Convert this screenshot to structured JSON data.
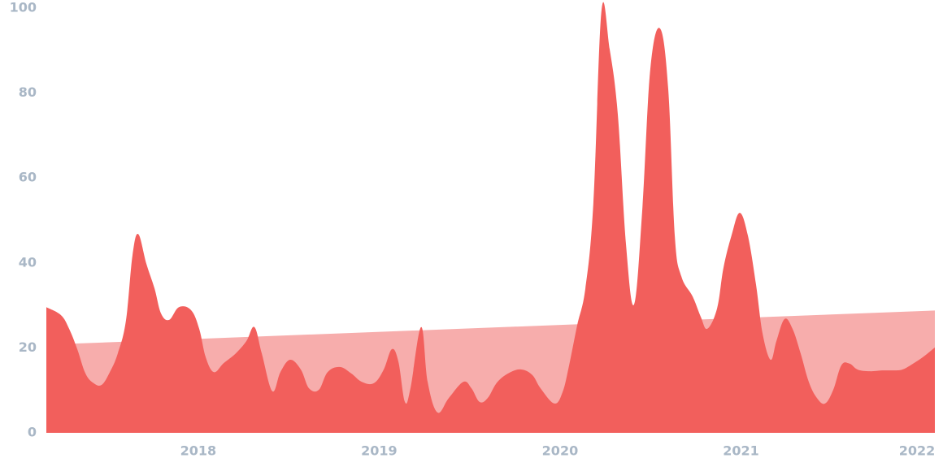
{
  "chart_data": {
    "type": "area",
    "x": [
      2017.16,
      2017.241,
      2017.286,
      2017.331,
      2017.376,
      2017.421,
      2017.466,
      2017.511,
      2017.555,
      2017.6,
      2017.636,
      2017.668,
      2017.713,
      2017.758,
      2017.794,
      2017.839,
      2017.893,
      2017.96,
      2018.005,
      2018.041,
      2018.086,
      2018.14,
      2018.207,
      2018.266,
      2018.31,
      2018.351,
      2018.409,
      2018.454,
      2018.508,
      2018.567,
      2018.612,
      2018.666,
      2018.715,
      2018.782,
      2018.845,
      2018.904,
      2018.971,
      2019.025,
      2019.07,
      2019.106,
      2019.142,
      2019.173,
      2019.232,
      2019.268,
      2019.322,
      2019.385,
      2019.465,
      2019.51,
      2019.555,
      2019.6,
      2019.654,
      2019.726,
      2019.789,
      2019.847,
      2019.892,
      2019.969,
      2020.014,
      2020.05,
      2020.095,
      2020.14,
      2020.184,
      2020.229,
      2020.274,
      2020.319,
      2020.364,
      2020.409,
      2020.454,
      2020.499,
      2020.553,
      2020.598,
      2020.634,
      2020.67,
      2020.733,
      2020.778,
      2020.814,
      2020.868,
      2020.903,
      2020.948,
      2020.993,
      2021.038,
      2021.083,
      2021.119,
      2021.164,
      2021.196,
      2021.241,
      2021.285,
      2021.33,
      2021.375,
      2021.42,
      2021.465,
      2021.51,
      2021.555,
      2021.6,
      2021.645,
      2021.712,
      2021.78,
      2021.847,
      2021.892,
      2021.937,
      2022.005,
      2022.072
    ],
    "series": [
      {
        "color": "#f7adac",
        "x": [
          2017.308,
          2022.072
        ],
        "values": [
          21,
          28.8
        ]
      },
      {
        "color": "#f25f5c",
        "values": [
          29.6,
          27.7,
          24.5,
          19.7,
          14,
          11.7,
          11.3,
          14.3,
          18.7,
          26.4,
          41.7,
          46.8,
          39.8,
          34,
          28.1,
          26.6,
          29.6,
          28.9,
          24.5,
          17.8,
          14.3,
          16.4,
          18.7,
          21.6,
          24.9,
          18.7,
          9.8,
          14.3,
          17.2,
          14.9,
          10.5,
          10.1,
          14.3,
          15.5,
          14,
          12,
          11.7,
          14.9,
          19.7,
          16.8,
          7.3,
          10.5,
          24.9,
          12,
          4.8,
          8.2,
          12,
          10.5,
          7.3,
          8.2,
          12,
          14.3,
          14.9,
          13.6,
          10.5,
          6.9,
          9.6,
          15.9,
          25.4,
          34,
          54,
          99.4,
          90.4,
          75.1,
          44.6,
          30.2,
          52.2,
          85.7,
          95.2,
          80.9,
          46.5,
          36.9,
          32.1,
          27.3,
          24.5,
          29.3,
          38.8,
          46.5,
          51.8,
          46.5,
          35,
          23.5,
          17.2,
          21.6,
          26.8,
          24.5,
          18.7,
          12,
          8.2,
          6.9,
          10.1,
          15.9,
          16.3,
          14.9,
          14.5,
          14.7,
          14.7,
          14.9,
          15.9,
          17.8,
          20.1
        ]
      }
    ],
    "xlim": [
      2017.16,
      2022.072
    ],
    "xticks": [
      2018,
      2019,
      2020,
      2021,
      2022
    ],
    "ylim": [
      0,
      100
    ],
    "yticks": [
      0,
      20,
      40,
      60,
      80,
      100
    ],
    "grid": false
  }
}
